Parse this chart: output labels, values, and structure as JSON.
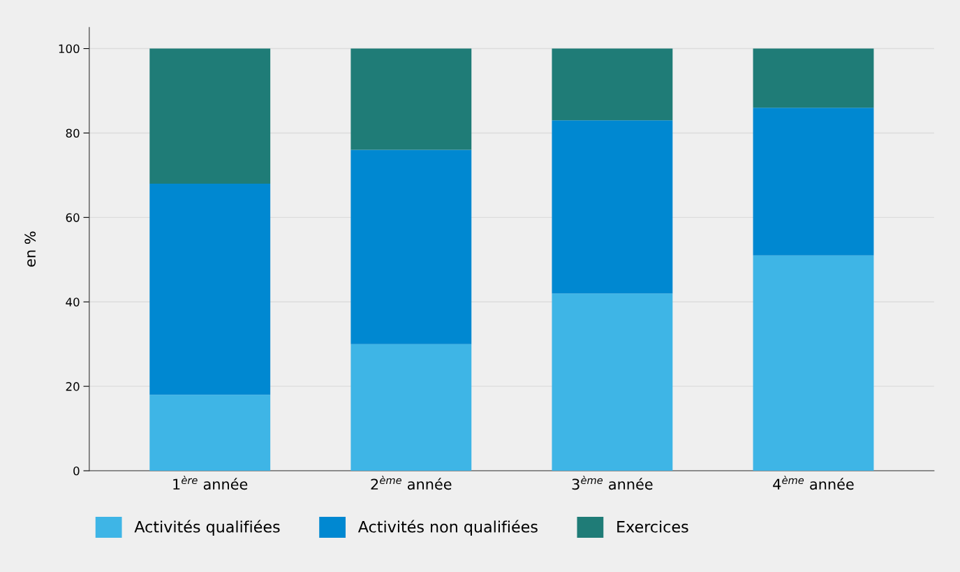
{
  "chart_data": {
    "type": "bar",
    "stacked": true,
    "ylabel": "en %",
    "categories": [
      "1$^{ère}$ année",
      "2$^{ème}$ année",
      "3$^{ème}$ année",
      "4$^{ème}$ année"
    ],
    "series": [
      {
        "name": "Activités qualifiées",
        "color": "#3eb5e6",
        "values": [
          18,
          30,
          42,
          51
        ]
      },
      {
        "name": "Activités non qualifiées",
        "color": "#0088d1",
        "values": [
          50,
          46,
          41,
          35
        ]
      },
      {
        "name": "Exercices",
        "color": "#1f7c77",
        "values": [
          32,
          24,
          17,
          14
        ]
      }
    ],
    "ylim": [
      0,
      105
    ],
    "yticks": [
      0,
      20,
      40,
      60,
      80,
      100
    ],
    "grid": "y",
    "legend": "bottom"
  }
}
